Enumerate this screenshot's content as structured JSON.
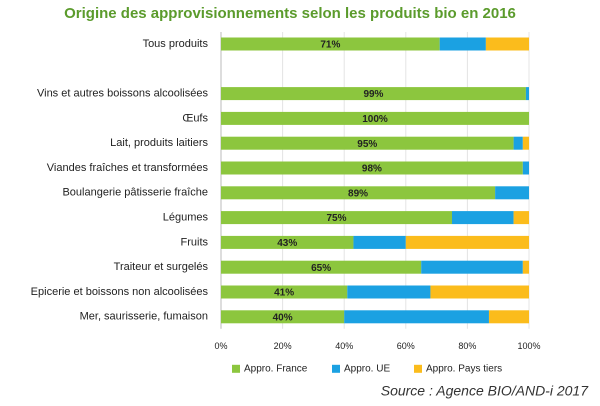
{
  "chart_data": {
    "type": "stacked-barh",
    "title": "Origine des approvisionnements selon les produits bio en 2016",
    "categories": [
      "Tous produits",
      null,
      "Vins et autres boissons alcoolisées",
      "Œufs",
      "Lait, produits laitiers",
      "Viandes fraîches et transformées",
      "Boulangerie pâtisserie fraîche",
      "Légumes",
      "Fruits",
      "Traiteur et surgelés",
      "Epicerie et boissons non alcoolisées",
      "Mer, saurisserie, fumaison"
    ],
    "series": [
      {
        "name": "Appro. France",
        "color": "#8cc63e",
        "values": [
          71,
          null,
          99,
          100,
          95,
          98,
          89,
          75,
          43,
          65,
          41,
          40
        ],
        "value_labels": [
          "71%",
          null,
          "99%",
          "100%",
          "95%",
          "98%",
          "89%",
          "75%",
          "43%",
          "65%",
          "41%",
          "40%"
        ]
      },
      {
        "name": "Appro. UE",
        "color": "#1ba1e2",
        "values": [
          15,
          null,
          1,
          0,
          3,
          2,
          11,
          20,
          17,
          33,
          27,
          47
        ]
      },
      {
        "name": "Appro. Pays tiers",
        "color": "#fbbc1c",
        "values": [
          14,
          null,
          0,
          0,
          2,
          0,
          0,
          5,
          40,
          2,
          32,
          13
        ]
      }
    ],
    "xlim": [
      0,
      100
    ],
    "xticks": [
      {
        "value": 0,
        "label": "0%"
      },
      {
        "value": 20,
        "label": "20%"
      },
      {
        "value": 40,
        "label": "40%"
      },
      {
        "value": 60,
        "label": "60%"
      },
      {
        "value": 80,
        "label": "80%"
      },
      {
        "value": 100,
        "label": "100%"
      }
    ],
    "grid": true,
    "legend": "bottom",
    "source": "Source : Agence BIO/AND-i 2017"
  }
}
